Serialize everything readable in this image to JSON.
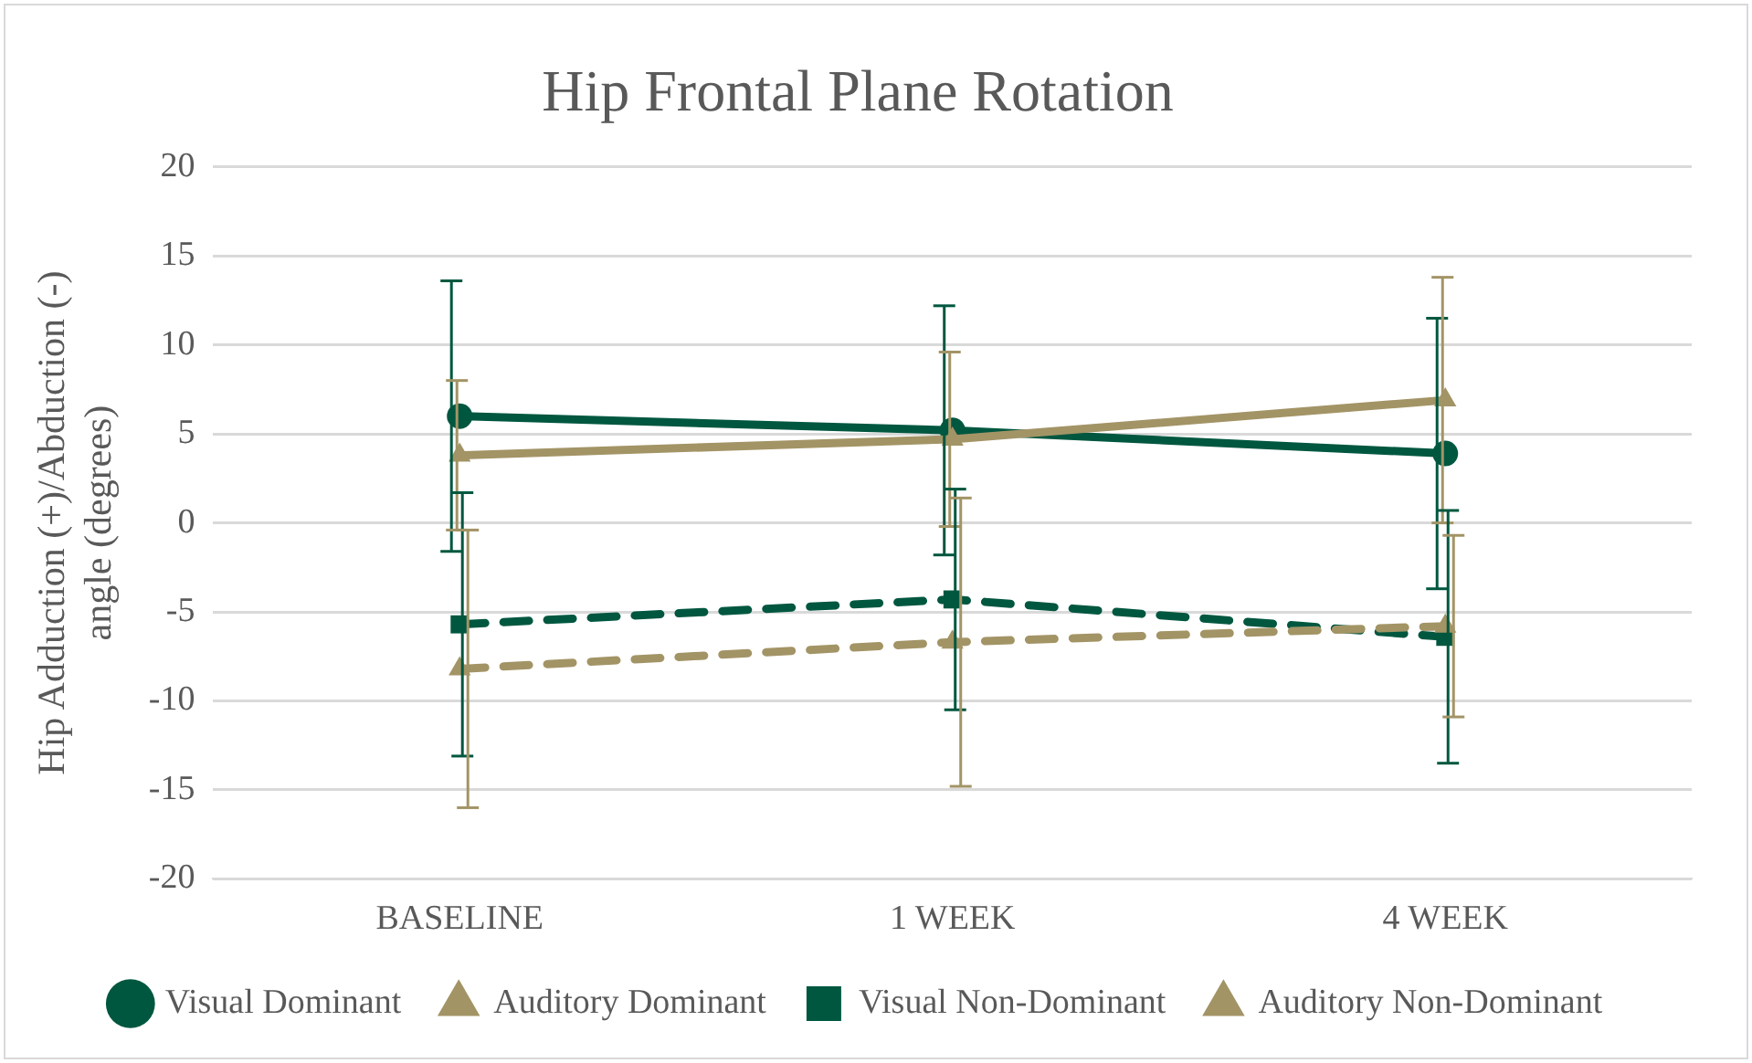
{
  "chart_data": {
    "type": "line",
    "title": "Hip Frontal Plane Rotation",
    "ylabel": "Hip Adduction (+)/Abduction (-) angle (degrees)",
    "categories": [
      "BASELINE",
      "1 WEEK",
      "4 WEEK"
    ],
    "series": [
      {
        "name": "Visual Dominant",
        "color": "#00573f",
        "values": [
          6.0,
          5.2,
          3.9
        ],
        "errors": [
          7.6,
          7.0,
          7.6
        ],
        "marker": "circle",
        "line_style": "solid"
      },
      {
        "name": "Auditory Dominant",
        "color": "#a39466",
        "values": [
          3.8,
          4.7,
          6.9
        ],
        "errors": [
          4.2,
          4.9,
          6.9
        ],
        "marker": "triangle",
        "line_style": "solid"
      },
      {
        "name": "Visual Non-Dominant",
        "color": "#00573f",
        "values": [
          -5.7,
          -4.3,
          -6.4
        ],
        "errors": [
          7.4,
          6.2,
          7.1
        ],
        "marker": "square",
        "line_style": "dashed"
      },
      {
        "name": "Auditory Non-Dominant",
        "color": "#a39466",
        "values": [
          -8.2,
          -6.7,
          -5.8
        ],
        "errors": [
          7.8,
          8.1,
          5.1
        ],
        "marker": "triangle",
        "line_style": "dashed"
      }
    ],
    "ylim": [
      -20,
      20
    ],
    "yticks": [
      -20,
      -15,
      -10,
      -5,
      0,
      5,
      10,
      15,
      20
    ],
    "grid": "y",
    "legend": "bottom"
  }
}
